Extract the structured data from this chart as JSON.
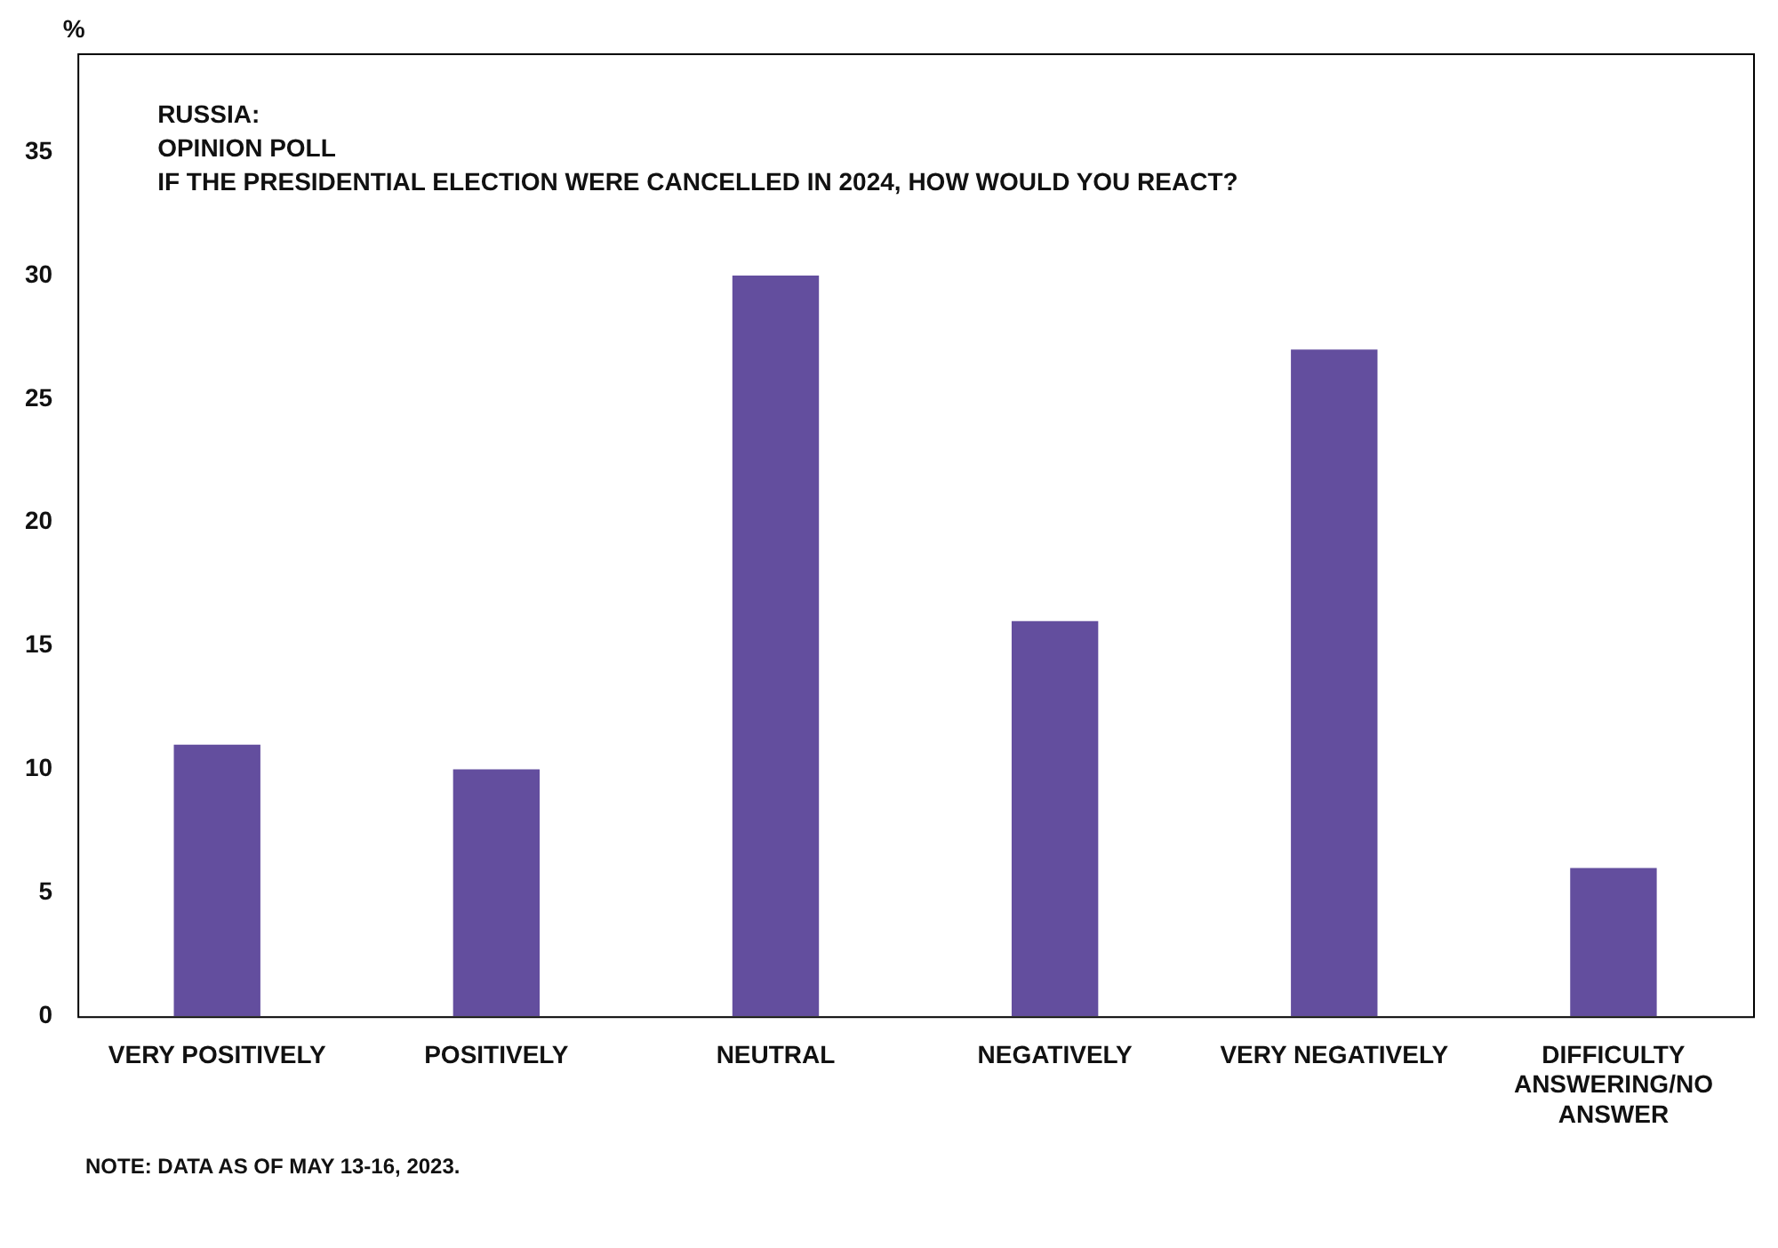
{
  "chart_data": {
    "type": "bar",
    "title": "RUSSIA:\nOPINION POLL\nIF THE PRESIDENTIAL ELECTION WERE CANCELLED IN 2024, HOW WOULD YOU REACT?",
    "ylabel": "%",
    "categories": [
      "VERY POSITIVELY",
      "POSITIVELY",
      "NEUTRAL",
      "NEGATIVELY",
      "VERY NEGATIVELY",
      "DIFFICULTY ANSWERING/NO ANSWER"
    ],
    "values": [
      11,
      10,
      30,
      16,
      27,
      6
    ],
    "color": "#634e9e",
    "ylim": [
      0,
      39
    ],
    "yticks": [
      0,
      5,
      10,
      15,
      20,
      25,
      30,
      35
    ],
    "grid": false,
    "legend": false,
    "annotations": [
      "NOTE: DATA AS OF MAY 13-16, 2023."
    ]
  }
}
